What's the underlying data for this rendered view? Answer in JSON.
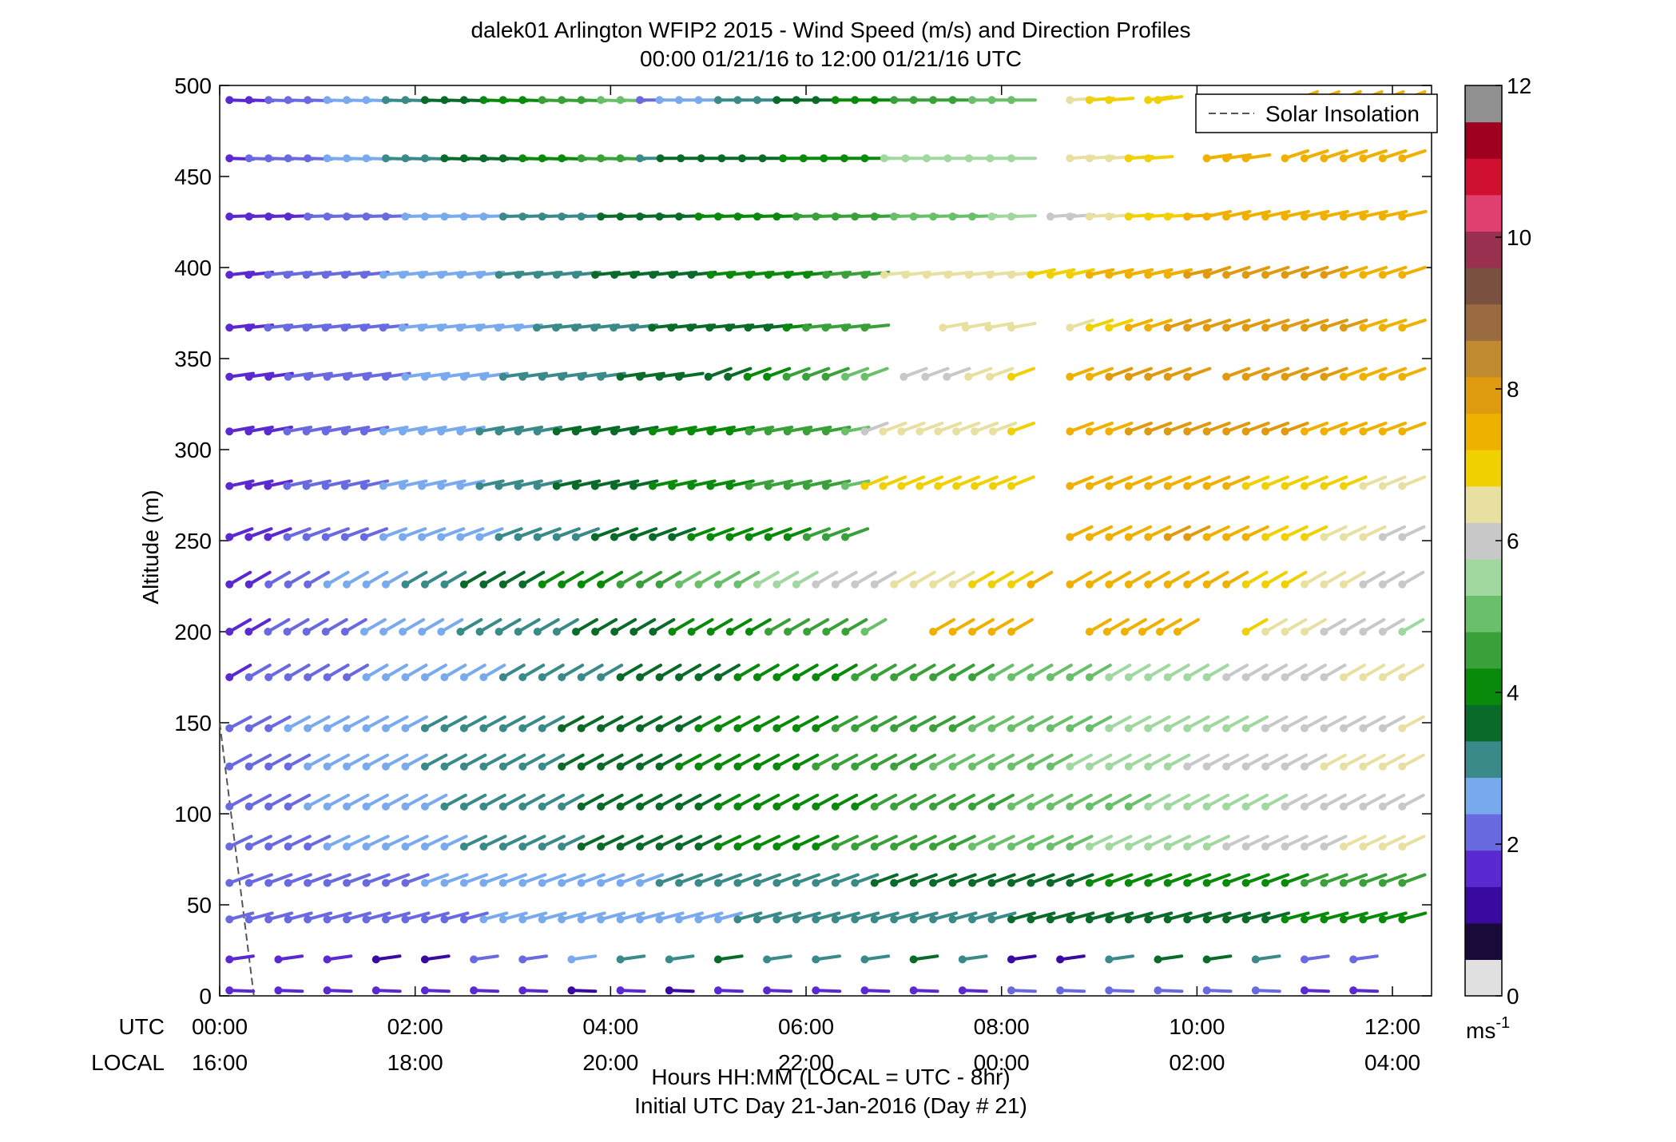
{
  "chart_data": {
    "type": "scatter",
    "title": "dalek01 Arlington WFIP2 2015 - Wind Speed (m/s) and Direction Profiles",
    "subtitle": "00:00 01/21/16 to 12:00 01/21/16  UTC",
    "xlabel": "Hours HH:MM  (LOCAL = UTC - 8hr)",
    "xlabel2": "Initial UTC Day 21-Jan-2016 (Day # 21)",
    "ylabel": "Altitude (m)",
    "xlim": [
      0,
      12.4
    ],
    "ylim": [
      0,
      500
    ],
    "yticks": [
      0,
      50,
      100,
      150,
      200,
      250,
      300,
      350,
      400,
      450,
      500
    ],
    "xticks_utc": [
      "00:00",
      "02:00",
      "04:00",
      "06:00",
      "08:00",
      "10:00",
      "12:00"
    ],
    "xticks_local": [
      "16:00",
      "18:00",
      "20:00",
      "22:00",
      "00:00",
      "02:00",
      "04:00"
    ],
    "xtick_hours": [
      0,
      2,
      4,
      6,
      8,
      10,
      12
    ],
    "row_label_utc": "UTC",
    "row_label_local": "LOCAL",
    "grid": false,
    "legend": {
      "entries": [
        "Solar Insolation"
      ],
      "placement": "top-right"
    },
    "colorbar": {
      "min": 0,
      "max": 12,
      "ticks": [
        "0",
        "2",
        "4",
        "6",
        "8",
        "10",
        "12"
      ],
      "unit_base": "ms",
      "unit_exp": "-1"
    },
    "solar_insolation": {
      "x": [
        -0.5,
        0.35
      ],
      "y": [
        150,
        0
      ]
    },
    "series": [
      {
        "name": "Solar Insolation",
        "type": "line",
        "style": "dashed",
        "color": "#555555"
      }
    ],
    "wind_barbs": {
      "heights": [
        3,
        20,
        42,
        62,
        82,
        104,
        126,
        147,
        175,
        200,
        226,
        252,
        280,
        310,
        340,
        367,
        396,
        428,
        460,
        492
      ],
      "start_hour": 0.1,
      "step_hours": 0.2,
      "note_direction": "degrees of shaft from vertical, speed in m/s",
      "low_levels": [
        {
          "h": 3,
          "speeds": [
            1.5,
            1.4,
            1.4,
            1.5,
            1.4,
            1.4,
            1.3,
            1.2,
            1.3,
            1.2,
            1.4,
            1.4,
            1.5,
            1.5,
            1.5,
            1.6,
            2.2,
            2.2,
            2.1,
            2.0,
            1.9,
            1.9,
            1.6,
            1.5
          ],
          "dir": 92
        },
        {
          "h": 20,
          "speeds": [
            1.7,
            1.6,
            1.5,
            0.8,
            1.2,
            1.9,
            2.1,
            2.6,
            2.8,
            3.0,
            3.5,
            3.2,
            3.0,
            3.2,
            3.4,
            3.2,
            1.2,
            1.1,
            3.2,
            3.4,
            3.5,
            3.0,
            1.8,
            2.2
          ],
          "dir": 82
        }
      ],
      "upper_rows": [
        {
          "h": 42,
          "segments": [
            {
              "from": 0.1,
              "to": 12.1,
              "s0": 1.8,
              "s1": 4.0,
              "dir": 75
            }
          ]
        },
        {
          "h": 62,
          "segments": [
            {
              "from": 0.1,
              "to": 12.1,
              "s0": 1.8,
              "s1": 4.5,
              "dir": 70
            }
          ]
        },
        {
          "h": 82,
          "segments": [
            {
              "from": 0.1,
              "to": 12.1,
              "s0": 1.9,
              "s1": 6.5,
              "dir": 65
            }
          ]
        },
        {
          "h": 104,
          "segments": [
            {
              "from": 0.1,
              "to": 12.1,
              "s0": 2.0,
              "s1": 6.2,
              "dir": 62
            }
          ]
        },
        {
          "h": 126,
          "segments": [
            {
              "from": 0.1,
              "to": 12.1,
              "s0": 2.0,
              "s1": 6.6,
              "dir": 62
            }
          ]
        },
        {
          "h": 147,
          "segments": [
            {
              "from": 0.1,
              "to": 12.1,
              "s0": 2.1,
              "s1": 6.3,
              "dir": 62
            }
          ]
        },
        {
          "h": 175,
          "segments": [
            {
              "from": 0.1,
              "to": 12.1,
              "s0": 1.7,
              "s1": 6.5,
              "dir": 60
            }
          ]
        },
        {
          "h": 200,
          "segments": [
            {
              "from": 0.1,
              "to": 6.6,
              "s0": 1.6,
              "s1": 4.8,
              "dir": 60
            },
            {
              "from": 7.3,
              "to": 8.1,
              "s0": 7.5,
              "s1": 7.5,
              "dir": 60
            },
            {
              "from": 8.9,
              "to": 9.8,
              "s0": 7.6,
              "s1": 7.6,
              "dir": 60
            },
            {
              "from": 10.5,
              "to": 12.1,
              "s0": 6.8,
              "s1": 5.6,
              "dir": 60
            }
          ]
        },
        {
          "h": 226,
          "segments": [
            {
              "from": 0.1,
              "to": 8.3,
              "s0": 1.6,
              "s1": 7.3,
              "dir": 60
            },
            {
              "from": 8.7,
              "to": 9.9,
              "s0": 7.4,
              "s1": 7.4,
              "dir": 60
            },
            {
              "from": 10.1,
              "to": 12.1,
              "s0": 7.5,
              "s1": 5.8,
              "dir": 60
            }
          ]
        },
        {
          "h": 252,
          "segments": [
            {
              "from": 0.1,
              "to": 6.4,
              "s0": 1.5,
              "s1": 4.5,
              "dir": 70
            },
            {
              "from": 8.7,
              "to": 9.9,
              "s0": 7.6,
              "s1": 7.8,
              "dir": 65
            },
            {
              "from": 10.1,
              "to": 12.1,
              "s0": 7.6,
              "s1": 6.0,
              "dir": 65
            }
          ]
        },
        {
          "h": 280,
          "segments": [
            {
              "from": 0.1,
              "to": 6.4,
              "s0": 1.5,
              "s1": 4.8,
              "dir": 78
            },
            {
              "from": 6.6,
              "to": 8.1,
              "s0": 6.8,
              "s1": 6.8,
              "dir": 68
            },
            {
              "from": 8.7,
              "to": 9.9,
              "s0": 7.5,
              "s1": 7.7,
              "dir": 68
            },
            {
              "from": 10.1,
              "to": 12.1,
              "s0": 7.4,
              "s1": 6.5,
              "dir": 68
            }
          ]
        },
        {
          "h": 310,
          "segments": [
            {
              "from": 0.1,
              "to": 6.4,
              "s0": 1.5,
              "s1": 4.8,
              "dir": 80
            },
            {
              "from": 6.6,
              "to": 8.1,
              "s0": 6.2,
              "s1": 6.8,
              "dir": 70
            },
            {
              "from": 8.7,
              "to": 9.9,
              "s0": 7.6,
              "s1": 8.0,
              "dir": 70
            },
            {
              "from": 10.1,
              "to": 12.1,
              "s0": 8.0,
              "s1": 7.4,
              "dir": 70
            }
          ]
        },
        {
          "h": 340,
          "segments": [
            {
              "from": 0.1,
              "to": 4.7,
              "s0": 1.5,
              "s1": 3.6,
              "dir": 82
            },
            {
              "from": 5.0,
              "to": 6.6,
              "s0": 3.5,
              "s1": 5.0,
              "dir": 70
            },
            {
              "from": 7.0,
              "to": 8.1,
              "s0": 5.8,
              "s1": 6.8,
              "dir": 70
            },
            {
              "from": 8.7,
              "to": 9.9,
              "s0": 7.6,
              "s1": 8.2,
              "dir": 70
            },
            {
              "from": 10.3,
              "to": 12.1,
              "s0": 8.0,
              "s1": 7.6,
              "dir": 70
            }
          ]
        },
        {
          "h": 367,
          "segments": [
            {
              "from": 0.1,
              "to": 5.8,
              "s0": 1.6,
              "s1": 3.8,
              "dir": 84
            },
            {
              "from": 6.0,
              "to": 6.6,
              "s0": 4.4,
              "s1": 4.6,
              "dir": 84
            },
            {
              "from": 7.4,
              "to": 8.1,
              "s0": 6.4,
              "s1": 6.6,
              "dir": 80
            },
            {
              "from": 8.7,
              "to": 9.9,
              "s0": 6.6,
              "s1": 8.2,
              "dir": 72
            },
            {
              "from": 10.1,
              "to": 12.1,
              "s0": 8.2,
              "s1": 7.6,
              "dir": 72
            }
          ]
        },
        {
          "h": 396,
          "segments": [
            {
              "from": 0.1,
              "to": 6.6,
              "s0": 1.6,
              "s1": 4.5,
              "dir": 84
            },
            {
              "from": 6.8,
              "to": 8.1,
              "s0": 6.6,
              "s1": 6.6,
              "dir": 84
            },
            {
              "from": 8.3,
              "to": 9.9,
              "s0": 7.0,
              "s1": 7.8,
              "dir": 78
            },
            {
              "from": 10.1,
              "to": 12.1,
              "s0": 8.0,
              "s1": 7.6,
              "dir": 72
            }
          ]
        },
        {
          "h": 428,
          "segments": [
            {
              "from": 0.1,
              "to": 8.1,
              "s0": 1.4,
              "s1": 5.4,
              "dir": 88
            },
            {
              "from": 8.5,
              "to": 9.9,
              "s0": 6.0,
              "s1": 7.4,
              "dir": 86
            },
            {
              "from": 10.1,
              "to": 12.1,
              "s0": 7.4,
              "s1": 7.6,
              "dir": 78
            }
          ]
        },
        {
          "h": 460,
          "segments": [
            {
              "from": 0.1,
              "to": 4.1,
              "s0": 1.6,
              "s1": 4.6,
              "dir": 92
            },
            {
              "from": 4.3,
              "to": 6.6,
              "s0": 3.2,
              "s1": 4.2,
              "dir": 90
            },
            {
              "from": 6.8,
              "to": 8.1,
              "s0": 5.6,
              "s1": 5.6,
              "dir": 90
            },
            {
              "from": 8.7,
              "to": 9.5,
              "s0": 6.5,
              "s1": 6.9,
              "dir": 86
            },
            {
              "from": 10.1,
              "to": 10.5,
              "s0": 7.3,
              "s1": 7.4,
              "dir": 82
            },
            {
              "from": 10.9,
              "to": 12.1,
              "s0": 7.6,
              "s1": 7.6,
              "dir": 72
            }
          ]
        },
        {
          "h": 492,
          "segments": [
            {
              "from": 0.1,
              "to": 4.1,
              "s0": 1.5,
              "s1": 5.0,
              "dir": 92
            },
            {
              "from": 4.3,
              "to": 8.1,
              "s0": 2.2,
              "s1": 5.2,
              "dir": 90
            },
            {
              "from": 8.7,
              "to": 9.1,
              "s0": 6.6,
              "s1": 6.9,
              "dir": 86
            },
            {
              "from": 9.5,
              "to": 9.6,
              "s0": 6.9,
              "s1": 6.9,
              "dir": 82
            },
            {
              "from": 11.0,
              "to": 12.1,
              "s0": 7.4,
              "s1": 7.4,
              "dir": 70
            }
          ]
        }
      ]
    }
  },
  "colors": {
    "axis": "#000000",
    "insolation": "#555555",
    "scale": [
      "#e0e0e0",
      "#1a0a3a",
      "#3a0aa0",
      "#5a2ad0",
      "#6a6ae0",
      "#7aaaee",
      "#3a8a8a",
      "#0a6a2a",
      "#0a8a0a",
      "#3aa03a",
      "#6ac06a",
      "#a0d8a0",
      "#c8c8c8",
      "#e8e0a0",
      "#f0d000",
      "#f0b000",
      "#e09a10",
      "#c08a30",
      "#9a6a40",
      "#7a5040",
      "#9a3050",
      "#e04070",
      "#d01030",
      "#a00020",
      "#909090"
    ]
  }
}
